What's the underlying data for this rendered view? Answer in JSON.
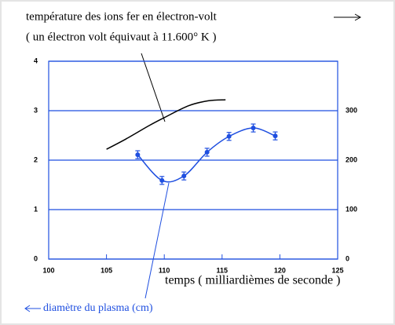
{
  "chart_data": {
    "type": "line",
    "annotations": [
      "température des ions fer en électron-volt",
      "( un électron volt équivaut à 11.600° K )",
      "diamètre du plasma (cm)"
    ],
    "x_label": "temps ( milliardièmes de seconde )",
    "xlim": [
      100,
      125
    ],
    "xticks": [
      100,
      105,
      110,
      115,
      120,
      125
    ],
    "ylim": [
      0,
      4
    ],
    "yticks": [
      0,
      1,
      2,
      3,
      4
    ],
    "y2lim": [
      0,
      400
    ],
    "y2ticks": [
      0,
      100,
      200,
      300
    ],
    "grid": true,
    "series": [
      {
        "color": "#000000",
        "axis": "y2",
        "x": [
          105,
          106.7,
          108.7,
          110,
          112.1,
          113.8,
          115.3
        ],
        "values": [
          222,
          243,
          270,
          286,
          310,
          320,
          322
        ]
      },
      {
        "color": "#1f4fe0",
        "x": [
          107.7,
          109.8,
          111.7,
          113.7,
          115.6,
          117.7,
          119.6
        ],
        "values": [
          2.11,
          1.59,
          1.68,
          2.16,
          2.48,
          2.65,
          2.49
        ],
        "errors": [
          0.08,
          0.08,
          0.08,
          0.08,
          0.08,
          0.08,
          0.08
        ]
      }
    ]
  }
}
